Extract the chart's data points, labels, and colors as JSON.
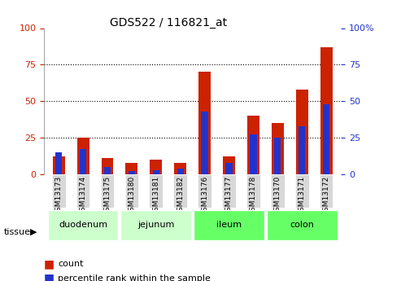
{
  "title": "GDS522 / 116821_at",
  "samples": [
    "GSM13173",
    "GSM13174",
    "GSM13175",
    "GSM13180",
    "GSM13181",
    "GSM13182",
    "GSM13176",
    "GSM13177",
    "GSM13178",
    "GSM13170",
    "GSM13171",
    "GSM13172"
  ],
  "count_values": [
    12,
    25,
    11,
    8,
    10,
    8,
    70,
    12,
    40,
    35,
    58,
    87
  ],
  "percentile_values": [
    15,
    17,
    5,
    2,
    3,
    4,
    43,
    8,
    27,
    25,
    33,
    48
  ],
  "tissue_groups": [
    {
      "label": "duodenum",
      "samples": [
        "GSM13173",
        "GSM13174",
        "GSM13175"
      ],
      "color": "#ccffcc"
    },
    {
      "label": "jejunum",
      "samples": [
        "GSM13180",
        "GSM13181",
        "GSM13182"
      ],
      "color": "#ccffcc"
    },
    {
      "label": "ileum",
      "samples": [
        "GSM13176",
        "GSM13177",
        "GSM13178"
      ],
      "color": "#66ff66"
    },
    {
      "label": "colon",
      "samples": [
        "GSM13170",
        "GSM13171",
        "GSM13172"
      ],
      "color": "#66ff66"
    }
  ],
  "tissue_spans": [
    {
      "label": "duodenum",
      "start": 0,
      "end": 3,
      "color": "#ccffcc"
    },
    {
      "label": "jejunum",
      "start": 3,
      "end": 6,
      "color": "#ccffcc"
    },
    {
      "label": "ileum",
      "start": 6,
      "end": 9,
      "color": "#66ff66"
    },
    {
      "label": "colon",
      "start": 9,
      "end": 12,
      "color": "#66ff66"
    }
  ],
  "bar_color_count": "#cc2200",
  "bar_color_percentile": "#2233cc",
  "left_axis_color": "#cc2200",
  "right_axis_color": "#2233cc",
  "ylim_left": [
    0,
    100
  ],
  "ylim_right": [
    0,
    100
  ],
  "yticks": [
    0,
    25,
    50,
    75,
    100
  ],
  "bar_width": 0.5,
  "legend_count_label": "count",
  "legend_percentile_label": "percentile rank within the sample",
  "xlabel_tissue": "tissue",
  "background_plot": "#ffffff",
  "background_xlabel": "#e8e8e8",
  "grid_color": "#000000"
}
